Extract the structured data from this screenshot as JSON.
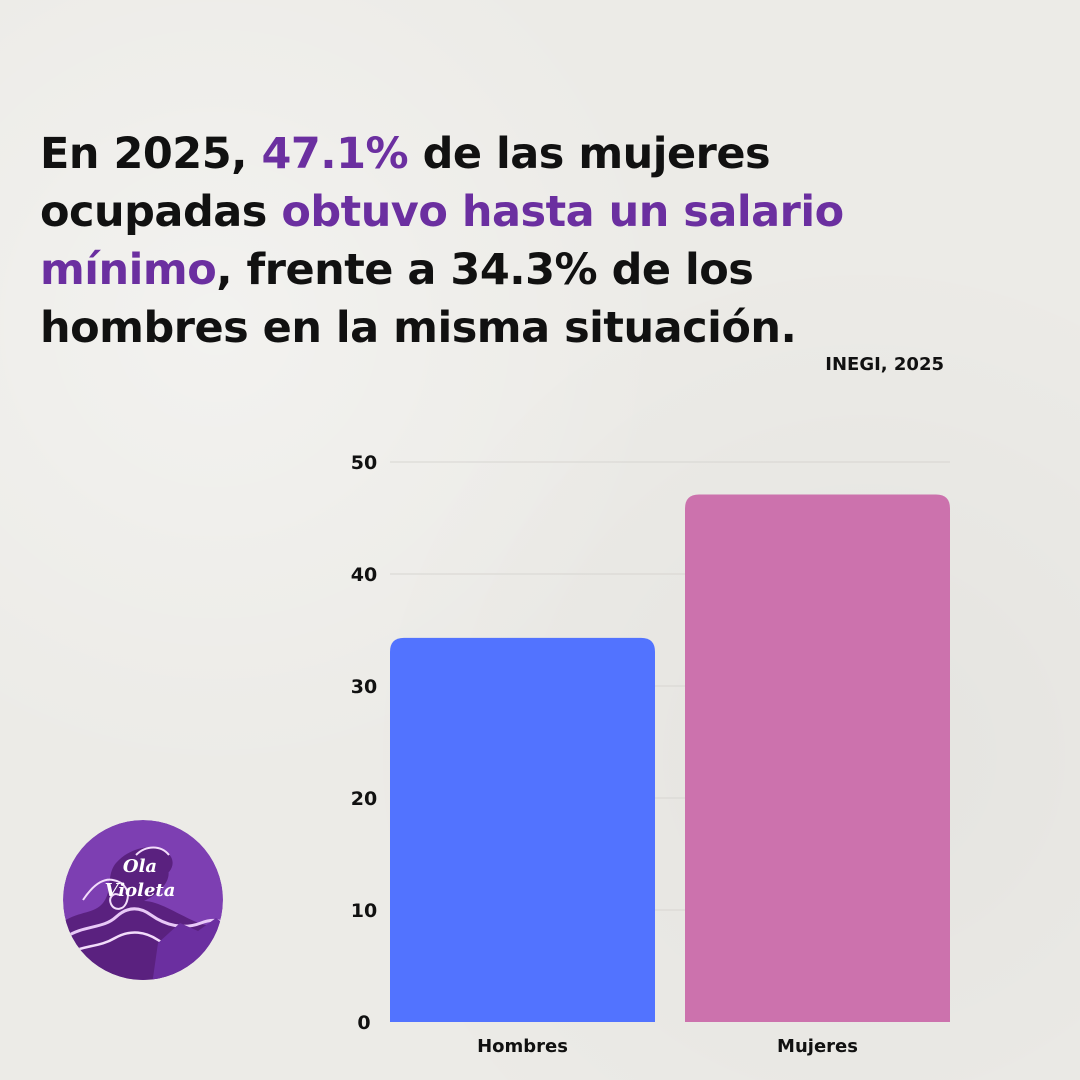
{
  "headline": {
    "part1": "En 2025, ",
    "highlight1": "47.1%",
    "part2": " de las mujeres ocupadas ",
    "highlight2": "obtuvo hasta un salario mínimo",
    "part3": ", frente a 34.3% de los hombres en la misma situación."
  },
  "source": "INEGI, 2025",
  "colors": {
    "accent": "#6b2fa0",
    "hombres": "#5273ff",
    "mujeres": "#cc72ad"
  },
  "logo": {
    "line1": "Ola",
    "line2": "Violeta",
    "icon": "wave-logo-icon"
  },
  "chart_data": {
    "type": "bar",
    "categories": [
      "Hombres",
      "Mujeres"
    ],
    "values": [
      34.3,
      47.1
    ],
    "yticks": [
      0,
      10,
      20,
      30,
      40,
      50
    ],
    "ylim": [
      0,
      50
    ],
    "title": "",
    "xlabel": "",
    "ylabel": "",
    "grid": true,
    "legend": "none"
  }
}
